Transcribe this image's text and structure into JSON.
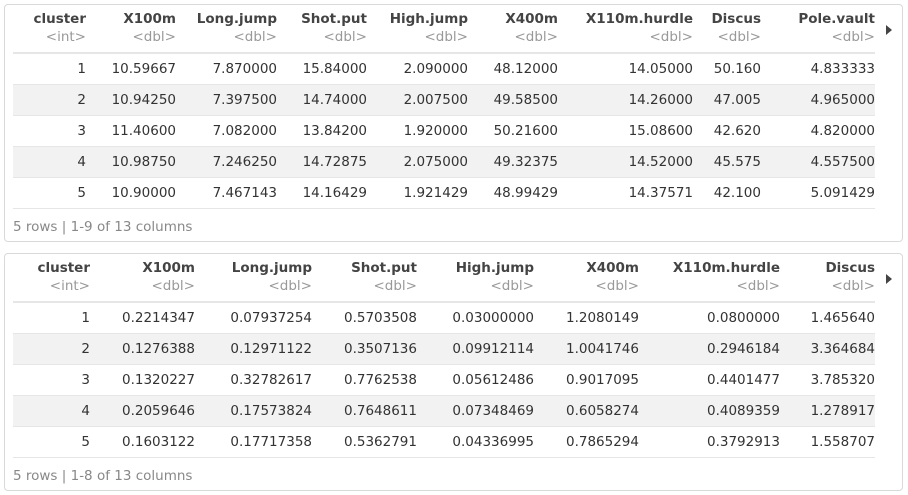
{
  "tables": [
    {
      "headers": [
        {
          "name": "cluster",
          "type": "<int>"
        },
        {
          "name": "X100m",
          "type": "<dbl>"
        },
        {
          "name": "Long.jump",
          "type": "<dbl>"
        },
        {
          "name": "Shot.put",
          "type": "<dbl>"
        },
        {
          "name": "High.jump",
          "type": "<dbl>"
        },
        {
          "name": "X400m",
          "type": "<dbl>"
        },
        {
          "name": "X110m.hurdle",
          "type": "<dbl>"
        },
        {
          "name": "Discus",
          "type": "<dbl>"
        },
        {
          "name": "Pole.vault",
          "type": "<dbl>"
        }
      ],
      "rows": [
        [
          "1",
          "10.59667",
          "7.870000",
          "15.84000",
          "2.090000",
          "48.12000",
          "14.05000",
          "50.160",
          "4.833333"
        ],
        [
          "2",
          "10.94250",
          "7.397500",
          "14.74000",
          "2.007500",
          "49.58500",
          "14.26000",
          "47.005",
          "4.965000"
        ],
        [
          "3",
          "11.40600",
          "7.082000",
          "13.84200",
          "1.920000",
          "50.21600",
          "15.08600",
          "42.620",
          "4.820000"
        ],
        [
          "4",
          "10.98750",
          "7.246250",
          "14.72875",
          "2.075000",
          "49.32375",
          "14.52000",
          "45.575",
          "4.557500"
        ],
        [
          "5",
          "10.90000",
          "7.467143",
          "14.16429",
          "1.921429",
          "48.99429",
          "14.37571",
          "42.100",
          "5.091429"
        ]
      ],
      "footer": "5 rows | 1-9 of 13 columns",
      "next_icon": "triangle-right-icon"
    },
    {
      "headers": [
        {
          "name": "cluster",
          "type": "<int>"
        },
        {
          "name": "X100m",
          "type": "<dbl>"
        },
        {
          "name": "Long.jump",
          "type": "<dbl>"
        },
        {
          "name": "Shot.put",
          "type": "<dbl>"
        },
        {
          "name": "High.jump",
          "type": "<dbl>"
        },
        {
          "name": "X400m",
          "type": "<dbl>"
        },
        {
          "name": "X110m.hurdle",
          "type": "<dbl>"
        },
        {
          "name": "Discus",
          "type": "<dbl>"
        }
      ],
      "rows": [
        [
          "1",
          "0.2214347",
          "0.07937254",
          "0.5703508",
          "0.03000000",
          "1.2080149",
          "0.0800000",
          "1.465640"
        ],
        [
          "2",
          "0.1276388",
          "0.12971122",
          "0.3507136",
          "0.09912114",
          "1.0041746",
          "0.2946184",
          "3.364684"
        ],
        [
          "3",
          "0.1320227",
          "0.32782617",
          "0.7762538",
          "0.05612486",
          "0.9017095",
          "0.4401477",
          "3.785320"
        ],
        [
          "4",
          "0.2059646",
          "0.17573824",
          "0.7648611",
          "0.07348469",
          "0.6058274",
          "0.4089359",
          "1.278917"
        ],
        [
          "5",
          "0.1603122",
          "0.17717358",
          "0.5362791",
          "0.04336995",
          "0.7865294",
          "0.3792913",
          "1.558707"
        ]
      ],
      "footer": "5 rows | 1-8 of 13 columns",
      "next_icon": "triangle-right-icon"
    }
  ]
}
